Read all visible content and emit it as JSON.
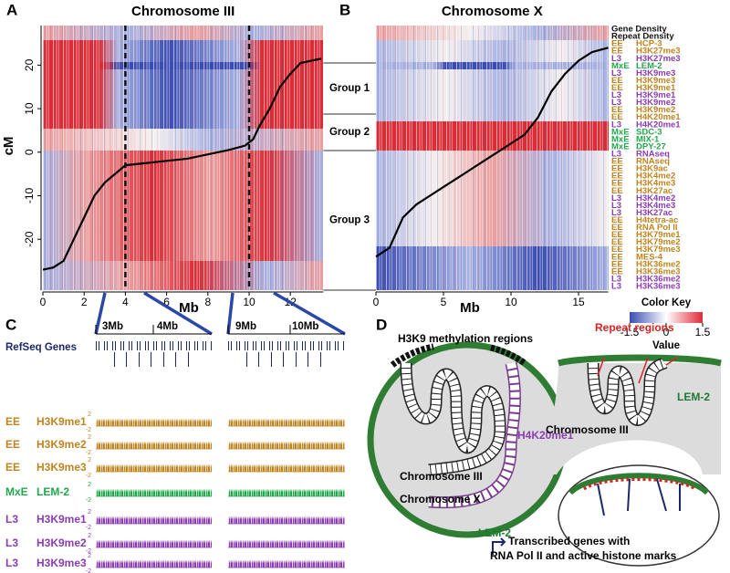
{
  "panel_a": {
    "label": "A",
    "title": "Chromosome III",
    "y_axis_label": "cM",
    "x_axis_label": "Mb",
    "xlim": [
      0,
      13.6
    ],
    "xticks": [
      0,
      2,
      4,
      6,
      8,
      10,
      12
    ],
    "ylim": [
      -31.7,
      29.1
    ],
    "yticks": [
      -20,
      -10,
      0,
      10,
      20
    ],
    "map_curve": {
      "x": [
        0,
        0.5,
        1,
        1.5,
        2,
        2.5,
        3,
        3.5,
        4,
        5,
        6,
        7,
        8,
        9,
        9.8,
        10.2,
        10.5,
        11,
        11.5,
        12,
        12.5,
        13.5
      ],
      "y": [
        -27,
        -26.5,
        -25,
        -20,
        -15,
        -10,
        -7,
        -5,
        -3,
        -2.5,
        -2,
        -1.5,
        -0.5,
        0.5,
        1.5,
        3,
        6,
        10,
        15,
        18,
        20.5,
        21.5
      ]
    }
  },
  "groups": [
    "Group 1",
    "Group 2",
    "Group 3"
  ],
  "panel_b": {
    "label": "B",
    "title": "Chromosome X",
    "x_axis_label": "Mb",
    "xlim": [
      0,
      17.2
    ],
    "xticks": [
      0,
      5,
      10,
      15
    ],
    "ylim": [
      -31.7,
      29.1
    ],
    "map_curve": {
      "x": [
        0,
        1,
        2,
        3,
        4,
        5,
        6,
        7,
        8,
        9,
        10,
        11,
        12,
        13,
        14,
        15,
        16,
        17.2
      ],
      "y": [
        -24,
        -22,
        -15,
        -12,
        -10,
        -8,
        -6,
        -4,
        -2,
        0,
        2,
        4,
        8,
        14,
        18,
        21,
        23,
        24
      ]
    }
  },
  "stage_colors": {
    "EE": "#bf8420",
    "L3": "#8b3db3",
    "MxE": "#22a84c"
  },
  "tracks": [
    {
      "name": "Gene Density"
    },
    {
      "name": "Repeat Density"
    },
    {
      "stage": "EE",
      "name": "HCP-3"
    },
    {
      "stage": "EE",
      "name": "H3K27me3"
    },
    {
      "stage": "L3",
      "name": "H3K27me3"
    },
    {
      "stage": "MxE",
      "name": "LEM-2"
    },
    {
      "stage": "L3",
      "name": "H3K9me3"
    },
    {
      "stage": "EE",
      "name": "H3K9me3"
    },
    {
      "stage": "EE",
      "name": "H3K9me1"
    },
    {
      "stage": "L3",
      "name": "H3K9me1"
    },
    {
      "stage": "L3",
      "name": "H3K9me2"
    },
    {
      "stage": "EE",
      "name": "H3K9me2"
    },
    {
      "stage": "EE",
      "name": "H4K20me1"
    },
    {
      "stage": "L3",
      "name": "H4K20me1"
    },
    {
      "stage": "MxE",
      "name": "SDC-3"
    },
    {
      "stage": "MxE",
      "name": "MIX-1"
    },
    {
      "stage": "MxE",
      "name": "DPY-27"
    },
    {
      "stage": "L3",
      "name": "RNAseq"
    },
    {
      "stage": "EE",
      "name": "RNAseq"
    },
    {
      "stage": "EE",
      "name": "H3K9ac"
    },
    {
      "stage": "EE",
      "name": "H3K4me2"
    },
    {
      "stage": "EE",
      "name": "H3K4me3"
    },
    {
      "stage": "EE",
      "name": "H3K27ac"
    },
    {
      "stage": "L3",
      "name": "H3K4me2"
    },
    {
      "stage": "L3",
      "name": "H3K4me3"
    },
    {
      "stage": "L3",
      "name": "H3K27ac"
    },
    {
      "stage": "EE",
      "name": "H4tetra-ac"
    },
    {
      "stage": "EE",
      "name": "RNA Pol II"
    },
    {
      "stage": "EE",
      "name": "H3K79me1"
    },
    {
      "stage": "EE",
      "name": "H3K79me2"
    },
    {
      "stage": "EE",
      "name": "H3K79me3"
    },
    {
      "stage": "EE",
      "name": "MES-4"
    },
    {
      "stage": "EE",
      "name": "H3K36me2"
    },
    {
      "stage": "EE",
      "name": "H3K36me3"
    },
    {
      "stage": "L3",
      "name": "H3K36me2"
    },
    {
      "stage": "L3",
      "name": "H3K36me3"
    }
  ],
  "color_key": {
    "title": "Color Key",
    "xlim": [
      -1.5,
      1.5
    ],
    "xticks": [
      -1.5,
      0,
      1.5
    ],
    "label": "Value"
  },
  "panel_c": {
    "label": "C",
    "region_labels": [
      "3Mb",
      "4Mb",
      "9Mb",
      "10Mb"
    ],
    "gene_track": "RefSeq Genes",
    "tracks": [
      {
        "stage": "EE",
        "name": "H3K9me1",
        "scale": [
          2,
          -2
        ]
      },
      {
        "stage": "EE",
        "name": "H3K9me2",
        "scale": [
          2,
          -2
        ]
      },
      {
        "stage": "EE",
        "name": "H3K9me3",
        "scale": [
          2,
          -2
        ]
      },
      {
        "stage": "MxE",
        "name": "LEM-2",
        "scale": [
          2,
          -2
        ]
      },
      {
        "stage": "L3",
        "name": "H3K9me1",
        "scale": [
          2,
          -2
        ]
      },
      {
        "stage": "L3",
        "name": "H3K9me2",
        "scale": [
          2,
          -2
        ]
      },
      {
        "stage": "L3",
        "name": "H3K9me3",
        "scale": [
          2,
          -2
        ]
      }
    ]
  },
  "panel_d": {
    "label": "D",
    "h3k9_label": "H3K9 methylation regions",
    "h4k20_label": "H4K20me1",
    "chr3_label": "Chromosome III",
    "chrx_label": "Chromosome X",
    "lem2_label": "LEM-2",
    "repeat_label": "Repeat regions",
    "lem2_label_right": "LEM-2",
    "chr3_label_right": "Chromosome III",
    "legend_line1": "Transcribed genes with",
    "legend_line2": "RNA Pol II and active histone marks"
  }
}
